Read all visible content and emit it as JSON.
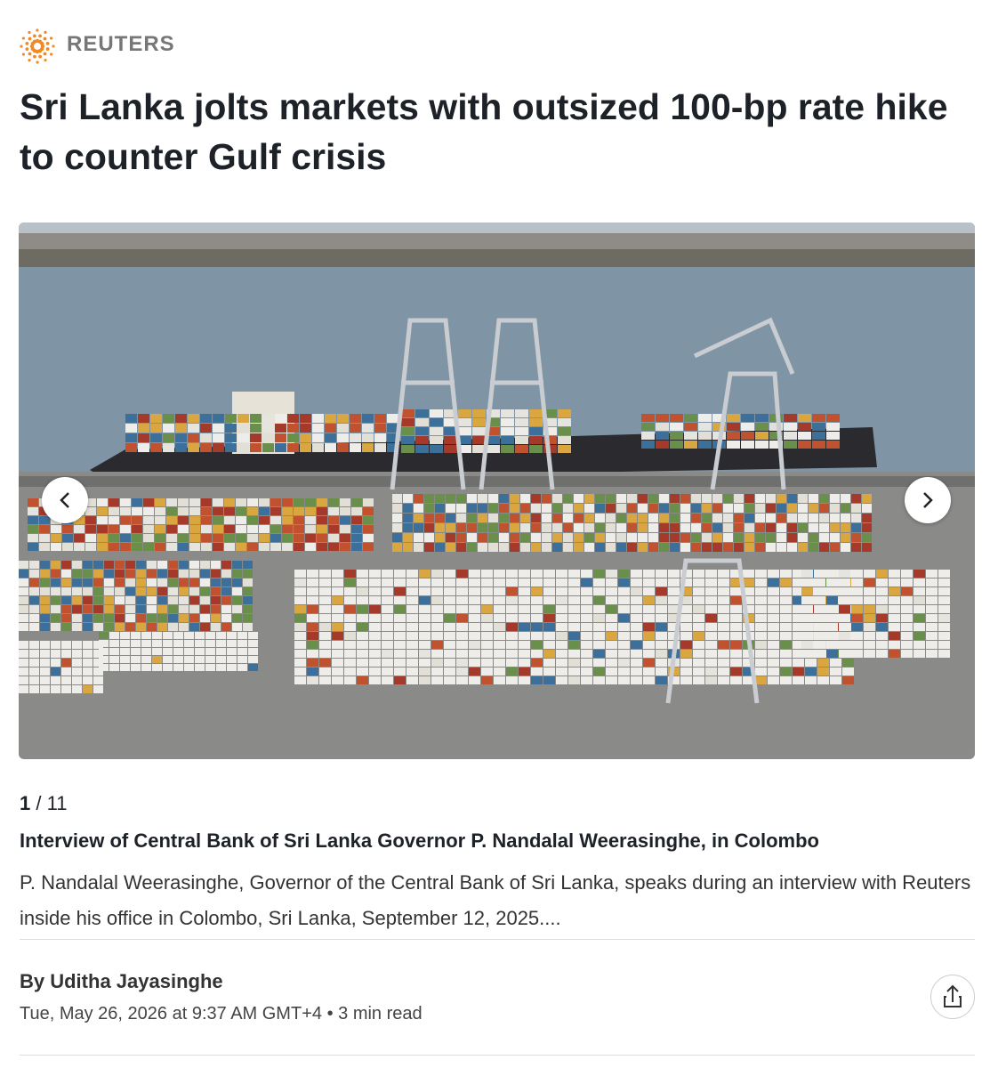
{
  "header": {
    "brand": "REUTERS",
    "title": "Sri Lanka jolts markets with outsized 100-bp rate hike to counter Gulf crisis"
  },
  "gallery": {
    "current": "1",
    "total": "/ 11",
    "caption_title": "Interview of Central Bank of Sri Lanka Governor P. Nandalal Weerasinghe, in Colombo",
    "caption_text": "P. Nandalal Weerasinghe, Governor of the Central Bank of Sri Lanka, speaks during an interview with Reuters inside his office in Colombo, Sri Lanka, September 12, 2025...."
  },
  "byline": {
    "author": "By Uditha Jayasinghe",
    "date": "Tue, May 26, 2026 at 9:37 AM GMT+4",
    "separator": "•",
    "read_time": "3 min read"
  }
}
